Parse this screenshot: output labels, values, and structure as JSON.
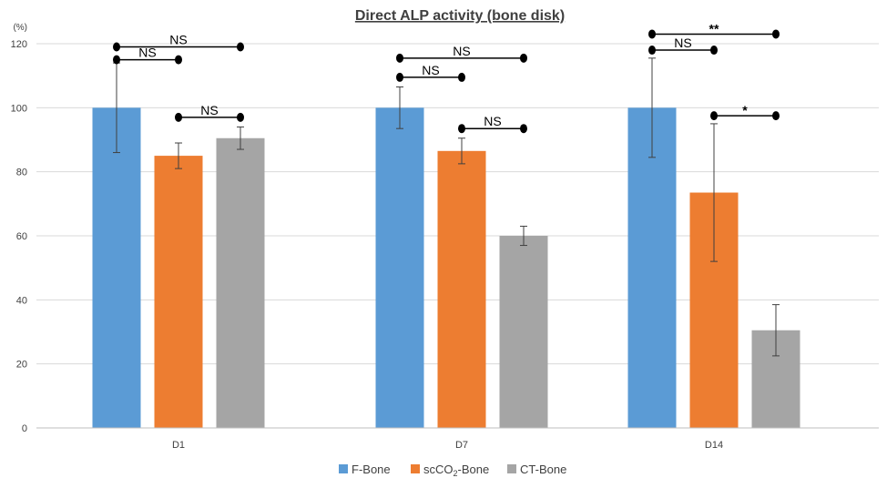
{
  "chart_data": {
    "type": "bar",
    "title": "Direct ALP activity (bone disk)",
    "ylabel": "(%)",
    "xlabel": "",
    "ylim": [
      0,
      120
    ],
    "yticks": [
      0,
      20,
      40,
      60,
      80,
      100,
      120
    ],
    "grid": true,
    "legend_position": "bottom",
    "categories": [
      "D1",
      "D7",
      "D14"
    ],
    "series": [
      {
        "name": "F-Bone",
        "color": "#5B9BD5",
        "values": [
          100,
          100,
          100
        ],
        "errors": [
          14,
          6.5,
          15.5
        ]
      },
      {
        "name_parts": [
          "scCO",
          "2",
          "-Bone"
        ],
        "color": "#ED7D31",
        "values": [
          85,
          86.5,
          73.5
        ],
        "errors": [
          4,
          4,
          21.5
        ]
      },
      {
        "name": "CT-Bone",
        "color": "#A5A5A5",
        "values": [
          90.5,
          60,
          30.5
        ],
        "errors": [
          3.5,
          3,
          8
        ]
      }
    ],
    "significance": [
      {
        "category": 0,
        "from_series": 0,
        "to_series": 2,
        "y": 119,
        "label": "NS"
      },
      {
        "category": 0,
        "from_series": 0,
        "to_series": 1,
        "y": 115,
        "label": "NS"
      },
      {
        "category": 0,
        "from_series": 1,
        "to_series": 2,
        "y": 97,
        "label": "NS"
      },
      {
        "category": 1,
        "from_series": 0,
        "to_series": 2,
        "y": 115.5,
        "label": "NS"
      },
      {
        "category": 1,
        "from_series": 0,
        "to_series": 1,
        "y": 109.5,
        "label": "NS"
      },
      {
        "category": 1,
        "from_series": 1,
        "to_series": 2,
        "y": 93.5,
        "label": "NS"
      },
      {
        "category": 2,
        "from_series": 0,
        "to_series": 2,
        "y": 123,
        "label": "**"
      },
      {
        "category": 2,
        "from_series": 0,
        "to_series": 1,
        "y": 118,
        "label": "NS"
      },
      {
        "category": 2,
        "from_series": 1,
        "to_series": 2,
        "y": 97.5,
        "label": "*"
      }
    ]
  }
}
